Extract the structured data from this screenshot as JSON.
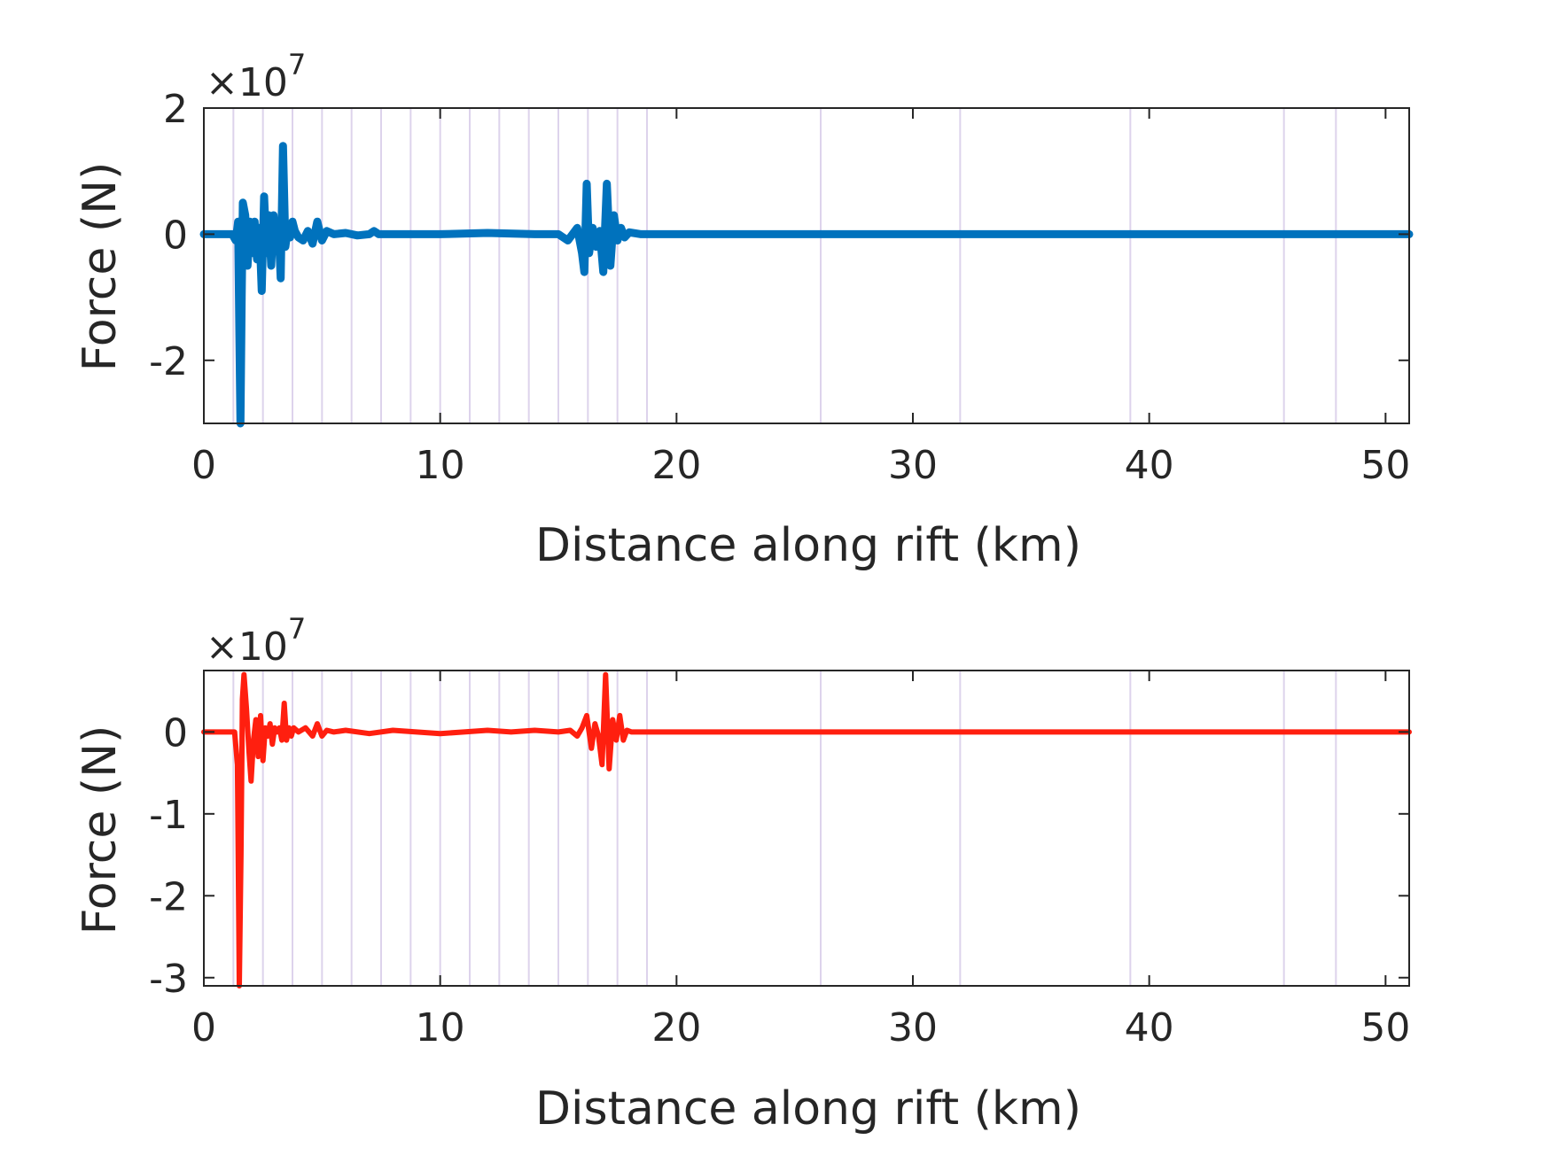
{
  "colors": {
    "axis": "#262626",
    "event_lines": "#ddd3ec",
    "series_top": "#0072bd",
    "series_bottom": "#ff1f0f"
  },
  "chart_data": [
    {
      "type": "line",
      "xlabel": "Distance along rift (km)",
      "ylabel": "Force (N)",
      "y_exponent_label": "×10",
      "y_exponent": "7",
      "xlim": [
        0,
        51
      ],
      "ylim": [
        -3,
        2
      ],
      "xticks": [
        0,
        10,
        20,
        30,
        40,
        50
      ],
      "yticks": [
        -2,
        0,
        2
      ],
      "xtick_labels": [
        "0",
        "10",
        "20",
        "30",
        "40",
        "50"
      ],
      "ytick_labels": [
        "-2",
        "0",
        "2"
      ],
      "grid": false,
      "event_lines_x": [
        1.25,
        2.5,
        3.75,
        5.0,
        6.25,
        7.5,
        8.75,
        10.0,
        11.25,
        12.5,
        13.75,
        15.0,
        16.25,
        17.5,
        18.75,
        26.1,
        32.0,
        39.2,
        45.7,
        47.9
      ],
      "series": [
        {
          "color": "#0072bd",
          "x": [
            0,
            1.2,
            1.35,
            1.45,
            1.5,
            1.55,
            1.6,
            1.65,
            1.75,
            1.85,
            1.95,
            2.05,
            2.15,
            2.25,
            2.35,
            2.45,
            2.55,
            2.65,
            2.75,
            2.85,
            2.95,
            3.05,
            3.15,
            3.25,
            3.35,
            3.45,
            3.55,
            3.65,
            3.75,
            3.85,
            4.0,
            4.2,
            4.4,
            4.6,
            4.8,
            5.0,
            5.2,
            5.5,
            6.0,
            6.5,
            7.0,
            7.2,
            7.4,
            8.0,
            10,
            12,
            14,
            15.0,
            15.4,
            15.8,
            16.0,
            16.1,
            16.2,
            16.3,
            16.45,
            16.6,
            16.75,
            16.9,
            17.05,
            17.2,
            17.35,
            17.5,
            17.65,
            17.8,
            18.0,
            18.5,
            19.0,
            20,
            30,
            40,
            51
          ],
          "y": [
            0,
            0,
            -0.1,
            0.2,
            -1.5,
            -3.0,
            -1.0,
            0.5,
            0.3,
            -0.5,
            0.2,
            -0.3,
            0.2,
            -0.4,
            0.1,
            -0.9,
            0.6,
            -0.3,
            0.3,
            -0.5,
            0.3,
            -0.2,
            0.2,
            -0.7,
            1.4,
            -0.2,
            0.1,
            -0.05,
            0.2,
            0.05,
            -0.05,
            -0.1,
            0.05,
            -0.15,
            0.2,
            -0.1,
            0.05,
            0,
            0.02,
            -0.02,
            0,
            0.05,
            0,
            0,
            0,
            0.02,
            0,
            0,
            -0.1,
            0.1,
            -0.3,
            -0.6,
            0.8,
            -0.3,
            0.1,
            -0.2,
            0.05,
            -0.6,
            0.8,
            -0.5,
            0.3,
            -0.1,
            0.1,
            -0.05,
            0.03,
            0,
            0,
            0,
            0,
            0,
            0
          ]
        }
      ]
    },
    {
      "type": "line",
      "xlabel": "Distance along rift (km)",
      "ylabel": "Force (N)",
      "y_exponent_label": "×10",
      "y_exponent": "7",
      "xlim": [
        0,
        51
      ],
      "ylim": [
        -3.1,
        0.75
      ],
      "xticks": [
        0,
        10,
        20,
        30,
        40,
        50
      ],
      "yticks": [
        -3,
        -2,
        -1,
        0
      ],
      "xtick_labels": [
        "0",
        "10",
        "20",
        "30",
        "40",
        "50"
      ],
      "ytick_labels": [
        "-3",
        "-2",
        "-1",
        "0"
      ],
      "grid": false,
      "event_lines_x": [
        1.25,
        2.5,
        3.75,
        5.0,
        6.25,
        7.5,
        8.75,
        10.0,
        11.25,
        12.5,
        13.75,
        15.0,
        16.25,
        17.5,
        18.75,
        26.1,
        32.0,
        39.2,
        45.7,
        47.9
      ],
      "series": [
        {
          "color": "#ff1f0f",
          "x": [
            0,
            1.3,
            1.42,
            1.5,
            1.57,
            1.63,
            1.7,
            1.8,
            1.9,
            2.0,
            2.1,
            2.2,
            2.3,
            2.4,
            2.5,
            2.6,
            2.7,
            2.8,
            2.9,
            3.0,
            3.1,
            3.2,
            3.3,
            3.4,
            3.5,
            3.6,
            3.7,
            3.8,
            4.0,
            4.3,
            4.6,
            4.8,
            5.0,
            5.2,
            5.5,
            6.0,
            7.0,
            8.0,
            9,
            10,
            11,
            12,
            13,
            14,
            15.0,
            15.5,
            15.8,
            16.0,
            16.2,
            16.4,
            16.55,
            16.7,
            16.85,
            17.0,
            17.15,
            17.3,
            17.45,
            17.6,
            17.75,
            17.9,
            18.1,
            18.5,
            20,
            30,
            40,
            51
          ],
          "y": [
            0,
            0,
            -0.4,
            -3.1,
            -1.5,
            0.4,
            0.7,
            0.3,
            -0.2,
            -0.6,
            -0.1,
            0.15,
            -0.3,
            0.2,
            -0.35,
            0.05,
            -0.05,
            0.1,
            -0.15,
            0.05,
            0,
            0.05,
            -0.1,
            0.35,
            -0.1,
            0.05,
            -0.05,
            0.05,
            0,
            0.05,
            -0.05,
            0.1,
            -0.05,
            0.02,
            0,
            0.02,
            -0.02,
            0.02,
            0,
            -0.02,
            0,
            0.02,
            0,
            0.02,
            0,
            0.02,
            -0.05,
            0.05,
            0.2,
            -0.2,
            0.1,
            -0.05,
            -0.4,
            0.7,
            -0.45,
            0.15,
            -0.1,
            0.2,
            -0.1,
            0.02,
            0,
            0,
            0,
            0,
            0,
            0
          ]
        }
      ]
    }
  ]
}
